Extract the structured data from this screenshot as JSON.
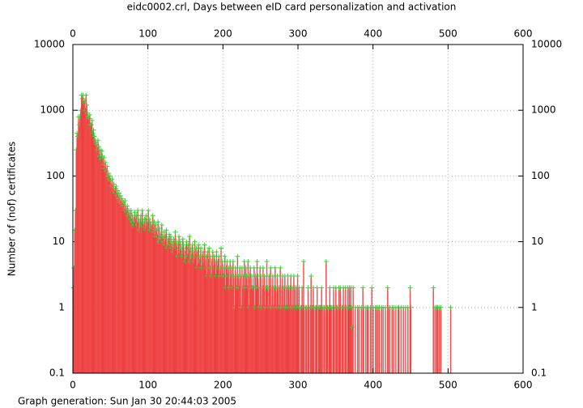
{
  "chart_data": {
    "type": "bar",
    "title": "eidc0002.crl, Days between eID card personalization and activation",
    "y_label": "Number of (nof) certificates",
    "footer": "Graph generation: Sun Jan 30 20:44:03 2005",
    "color": "#ff7070",
    "edge_color": "#e02020",
    "point_color": "#40d040",
    "log_scale_y": true,
    "grid": true,
    "xlim": [
      0,
      600
    ],
    "xticks": [
      0,
      100,
      200,
      300,
      400,
      500,
      600
    ],
    "ylim": [
      0.1,
      10000
    ],
    "yticks": [
      0.1,
      1,
      10,
      100,
      1000,
      10000
    ],
    "x": [
      0,
      1,
      2,
      3,
      4,
      5,
      6,
      7,
      8,
      9,
      10,
      11,
      12,
      13,
      14,
      15,
      16,
      17,
      18,
      19,
      20,
      21,
      22,
      23,
      24,
      25,
      26,
      27,
      28,
      29,
      30,
      31,
      32,
      33,
      34,
      35,
      36,
      37,
      38,
      39,
      40,
      41,
      42,
      43,
      44,
      45,
      46,
      47,
      48,
      49,
      50,
      51,
      52,
      53,
      54,
      55,
      56,
      57,
      58,
      59,
      60,
      61,
      62,
      63,
      64,
      65,
      66,
      67,
      68,
      69,
      70,
      71,
      72,
      73,
      74,
      75,
      76,
      77,
      78,
      79,
      80,
      81,
      82,
      83,
      84,
      85,
      86,
      87,
      88,
      89,
      90,
      91,
      92,
      93,
      94,
      95,
      96,
      97,
      98,
      99,
      100,
      101,
      102,
      103,
      104,
      105,
      106,
      107,
      108,
      109,
      110,
      111,
      112,
      113,
      114,
      115,
      116,
      117,
      118,
      119,
      120,
      121,
      122,
      123,
      124,
      125,
      126,
      127,
      128,
      129,
      130,
      131,
      132,
      133,
      134,
      135,
      136,
      137,
      138,
      139,
      140,
      141,
      142,
      143,
      144,
      145,
      146,
      147,
      148,
      149,
      150,
      151,
      152,
      153,
      154,
      155,
      156,
      157,
      158,
      159,
      160,
      161,
      162,
      163,
      164,
      165,
      166,
      167,
      168,
      169,
      170,
      171,
      172,
      173,
      174,
      175,
      176,
      177,
      178,
      179,
      180,
      181,
      182,
      183,
      184,
      185,
      186,
      187,
      188,
      189,
      190,
      191,
      192,
      193,
      194,
      195,
      196,
      197,
      198,
      199,
      200,
      201,
      202,
      203,
      204,
      205,
      206,
      207,
      208,
      209,
      210,
      211,
      212,
      213,
      214,
      215,
      216,
      217,
      218,
      219,
      220,
      221,
      222,
      223,
      224,
      225,
      226,
      227,
      228,
      229,
      230,
      231,
      232,
      233,
      234,
      235,
      236,
      237,
      238,
      239,
      240,
      241,
      242,
      243,
      244,
      245,
      246,
      247,
      248,
      249,
      250,
      251,
      252,
      253,
      254,
      255,
      256,
      257,
      258,
      259,
      260,
      261,
      262,
      263,
      264,
      265,
      266,
      267,
      268,
      269,
      270,
      271,
      272,
      273,
      274,
      275,
      276,
      277,
      278,
      279,
      280,
      281,
      282,
      283,
      284,
      285,
      286,
      287,
      288,
      289,
      290,
      291,
      292,
      293,
      294,
      295,
      296,
      297,
      298,
      299,
      300,
      301,
      303,
      304,
      305,
      306,
      307,
      308,
      310,
      311,
      313,
      314,
      316,
      317,
      318,
      319,
      320,
      321,
      323,
      324,
      325,
      327,
      328,
      329,
      330,
      331,
      332,
      334,
      335,
      337,
      338,
      339,
      341,
      342,
      343,
      344,
      346,
      347,
      348,
      350,
      351,
      352,
      354,
      355,
      356,
      358,
      359,
      360,
      362,
      363,
      364,
      366,
      367,
      368,
      369,
      370,
      371,
      372,
      373,
      376,
      379,
      381,
      384,
      386,
      387,
      390,
      392,
      393,
      396,
      398,
      400,
      403,
      404,
      406,
      408,
      411,
      413,
      416,
      419,
      420,
      422,
      425,
      427,
      430,
      433,
      434,
      437,
      440,
      443,
      446,
      449,
      450,
      480,
      482,
      484,
      485,
      486,
      488,
      490,
      503
    ],
    "values": [
      2,
      4,
      15,
      30,
      250,
      450,
      400,
      800,
      600,
      800,
      1000,
      1700,
      1500,
      1700,
      1300,
      1400,
      1000,
      1700,
      1200,
      900,
      800,
      750,
      850,
      600,
      600,
      700,
      450,
      500,
      400,
      350,
      330,
      300,
      250,
      350,
      280,
      200,
      250,
      180,
      240,
      200,
      150,
      190,
      130,
      160,
      120,
      140,
      100,
      110,
      90,
      100,
      85,
      70,
      90,
      60,
      75,
      55,
      65,
      70,
      50,
      60,
      45,
      55,
      40,
      50,
      38,
      45,
      35,
      40,
      30,
      42,
      32,
      28,
      35,
      25,
      30,
      27,
      22,
      30,
      20,
      25,
      18,
      22,
      28,
      20,
      25,
      18,
      30,
      22,
      15,
      20,
      25,
      18,
      30,
      20,
      17,
      22,
      15,
      25,
      20,
      18,
      30,
      22,
      15,
      20,
      18,
      16,
      25,
      14,
      20,
      12,
      18,
      15,
      12,
      20,
      10,
      16,
      13,
      11,
      18,
      12,
      10,
      14,
      9,
      12,
      15,
      8,
      11,
      10,
      13,
      9,
      12,
      8,
      10,
      7,
      11,
      9,
      14,
      8,
      10,
      6,
      9,
      12,
      7,
      10,
      8,
      6,
      11,
      9,
      7,
      5,
      8,
      10,
      6,
      9,
      7,
      12,
      5,
      8,
      6,
      9,
      7,
      5,
      10,
      6,
      8,
      4,
      7,
      9,
      5,
      6,
      8,
      4,
      6,
      7,
      5,
      9,
      4,
      6,
      3,
      7,
      5,
      8,
      4,
      6,
      3,
      5,
      7,
      4,
      6,
      5,
      3,
      7,
      4,
      5,
      6,
      3,
      4,
      8,
      3,
      5,
      4,
      3,
      6,
      2,
      4,
      5,
      3,
      4,
      2,
      5,
      3,
      4,
      2,
      5,
      3,
      1,
      4,
      3,
      2,
      6,
      3,
      2,
      4,
      3,
      1,
      4,
      2,
      3,
      5,
      2,
      4,
      3,
      2,
      5,
      1,
      3,
      4,
      2,
      3,
      2,
      2,
      4,
      1,
      3,
      2,
      5,
      3,
      2,
      1,
      4,
      3,
      1,
      2,
      4,
      2,
      3,
      1,
      2,
      5,
      2,
      1,
      3,
      2,
      4,
      1,
      2,
      3,
      1,
      2,
      4,
      2,
      1,
      3,
      2,
      1,
      2,
      4,
      1,
      2,
      3,
      1,
      2,
      3,
      1,
      2,
      1,
      3,
      2,
      1,
      2,
      3,
      1,
      2,
      1,
      3,
      2,
      1,
      2,
      1,
      3,
      1,
      2,
      1,
      1,
      2,
      1,
      5,
      1,
      1,
      1,
      2,
      1,
      1,
      3,
      1,
      1,
      2,
      1,
      1,
      1,
      2,
      1,
      1,
      1,
      1,
      2,
      1,
      1,
      1,
      5,
      1,
      1,
      1,
      2,
      1,
      1,
      1,
      2,
      1,
      2,
      1,
      1,
      2,
      1,
      2,
      1,
      1,
      2,
      1,
      2,
      1,
      2,
      1,
      2,
      1,
      2,
      1,
      0.5,
      2,
      1,
      1,
      1,
      1,
      2,
      1,
      1,
      1,
      1,
      1,
      2,
      1,
      1,
      1,
      1,
      1,
      1,
      1,
      1,
      2,
      1,
      1,
      1,
      1,
      1,
      1,
      1,
      1,
      1,
      1,
      1,
      2,
      1,
      2,
      1,
      1,
      1,
      1,
      1,
      1,
      1
    ]
  }
}
